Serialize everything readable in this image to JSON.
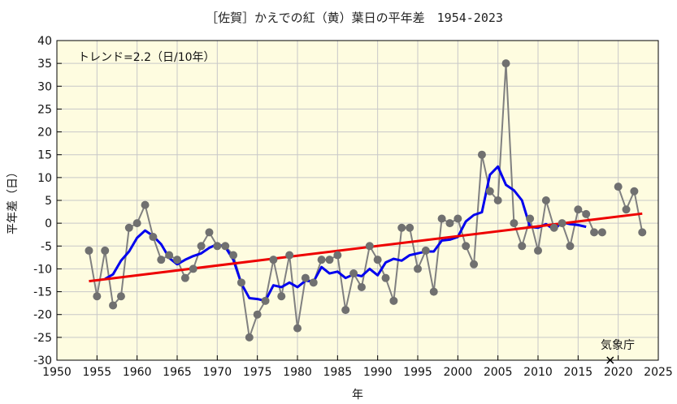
{
  "chart_data": {
    "type": "line",
    "title": "［佐賀］かえでの紅（黄）葉日の平年差　1954-2023",
    "xlabel": "年",
    "ylabel": "平年差（日）",
    "xlim": [
      1950,
      2025
    ],
    "ylim": [
      -30,
      40
    ],
    "xticks": [
      "1950",
      "1955",
      "1960",
      "1965",
      "1970",
      "1975",
      "1980",
      "1985",
      "1990",
      "1995",
      "2000",
      "2005",
      "2010",
      "2015",
      "2020",
      "2025"
    ],
    "yticks": [
      "-30",
      "-25",
      "-20",
      "-15",
      "-10",
      "-5",
      "0",
      "5",
      "10",
      "15",
      "20",
      "25",
      "30",
      "35",
      "40"
    ],
    "trend_label": "トレンド=2.2（日/10年）",
    "source_label": "気象庁",
    "grid": true,
    "background": "#fefce0",
    "colors": {
      "annual": "#808080",
      "moving_average": "#0000ee",
      "trend": "#ee0000"
    },
    "series": [
      {
        "kind": "annual",
        "x": [
          1954,
          1955,
          1956,
          1957,
          1958,
          1959,
          1960,
          1961,
          1962,
          1963,
          1964,
          1965,
          1966,
          1967,
          1968,
          1969,
          1970,
          1971,
          1972,
          1973,
          1974,
          1975,
          1976,
          1977,
          1978,
          1979,
          1980,
          1981,
          1982,
          1983,
          1984,
          1985,
          1986,
          1987,
          1988,
          1989,
          1990,
          1991,
          1992,
          1993,
          1994,
          1995,
          1996,
          1997,
          1998,
          1999,
          2000,
          2001,
          2002,
          2003,
          2004,
          2005,
          2006,
          2007,
          2008,
          2009,
          2010,
          2011,
          2012,
          2013,
          2014,
          2015,
          2016,
          2017,
          2018,
          2019,
          2020,
          2021,
          2022,
          2023
        ],
        "y": [
          -6,
          -16,
          -6,
          -18,
          -16,
          -1,
          0,
          4,
          -3,
          -8,
          -7,
          -8,
          -12,
          -10,
          -5,
          -2,
          -5,
          -5,
          -7,
          -13,
          -25,
          -20,
          -17,
          -8,
          -16,
          -7,
          -23,
          -12,
          -13,
          -8,
          -8,
          -7,
          -19,
          -11,
          -14,
          -5,
          -8,
          -12,
          -17,
          -1,
          -1,
          -10,
          -6,
          -15,
          1,
          0,
          1,
          -5,
          -9,
          15,
          7,
          5,
          35,
          0,
          -5,
          1,
          -6,
          5,
          -1,
          0,
          -5,
          3,
          2,
          -2,
          -2,
          null,
          8,
          3,
          7,
          -2
        ]
      },
      {
        "kind": "moving_average",
        "x": [
          1956,
          1957,
          1958,
          1959,
          1960,
          1961,
          1962,
          1963,
          1964,
          1965,
          1966,
          1967,
          1968,
          1969,
          1970,
          1971,
          1972,
          1973,
          1974,
          1975,
          1976,
          1977,
          1978,
          1979,
          1980,
          1981,
          1982,
          1983,
          1984,
          1985,
          1986,
          1987,
          1988,
          1989,
          1990,
          1991,
          1992,
          1993,
          1994,
          1995,
          1996,
          1997,
          1998,
          1999,
          2000,
          2001,
          2002,
          2003,
          2004,
          2005,
          2006,
          2007,
          2008,
          2009,
          2010,
          2011,
          2012,
          2013,
          2014,
          2015,
          2016
        ],
        "y": [
          -12.2,
          -11.2,
          -8.2,
          -6.2,
          -3.2,
          -1.6,
          -2.8,
          -4.6,
          -7.6,
          -9.0,
          -8.0,
          -7.2,
          -6.6,
          -5.4,
          -4.6,
          -5.2,
          -8.0,
          -13.2,
          -16.4,
          -16.6,
          -17.0,
          -13.6,
          -14.0,
          -13.0,
          -14.0,
          -12.6,
          -12.8,
          -9.6,
          -11.0,
          -10.6,
          -12.0,
          -11.2,
          -11.6,
          -10.0,
          -11.4,
          -8.6,
          -7.8,
          -8.2,
          -7.0,
          -6.6,
          -6.2,
          -6.2,
          -3.8,
          -3.6,
          -3.0,
          0.4,
          1.8,
          2.4,
          10.6,
          12.4,
          8.4,
          7.2,
          5.0,
          -0.8,
          -1.0,
          -0.2,
          -1.4,
          0.2,
          -0.2,
          -0.4,
          -0.8
        ]
      }
    ],
    "trend_line": {
      "x": [
        1954,
        2023
      ],
      "y": [
        -12.7,
        2.1
      ]
    },
    "extra_points": [
      {
        "x": 2019,
        "y": -30,
        "marker": "x"
      }
    ]
  }
}
